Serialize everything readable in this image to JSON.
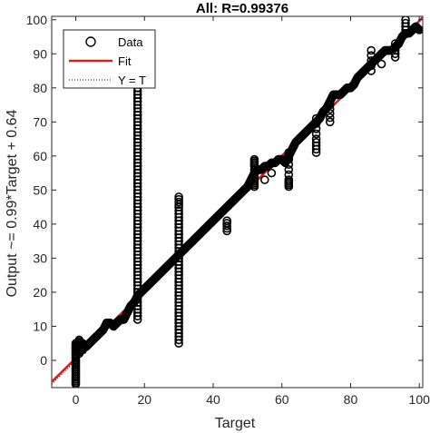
{
  "chart_data": {
    "type": "scatter",
    "title": "All: R=0.99376",
    "xlabel": "Target",
    "ylabel": "Output ~= 0.99*Target + 0.64",
    "xlim": [
      -7,
      101
    ],
    "ylim": [
      -8,
      101
    ],
    "x_ticks": [
      0,
      20,
      40,
      60,
      80,
      100
    ],
    "y_ticks": [
      0,
      10,
      20,
      30,
      40,
      50,
      60,
      70,
      80,
      90,
      100
    ],
    "grid": false,
    "legend_position": "top-left",
    "legend": [
      {
        "label": "Data",
        "style": "open circle marker",
        "color": "#000000"
      },
      {
        "label": "Fit",
        "style": "solid line",
        "color": "#d62020"
      },
      {
        "label": "Y = T",
        "style": "dotted line",
        "color": "#000000"
      }
    ],
    "fit": {
      "slope": 0.99,
      "intercept": 0.64
    },
    "series": [
      {
        "name": "Data",
        "points": [
          [
            0,
            -7
          ],
          [
            0,
            -5
          ],
          [
            0,
            -3
          ],
          [
            0,
            -1
          ],
          [
            0,
            1
          ],
          [
            0,
            3
          ],
          [
            0,
            5
          ],
          [
            1,
            2
          ],
          [
            1,
            4
          ],
          [
            1,
            6
          ],
          [
            2,
            3
          ],
          [
            2,
            5
          ],
          [
            3,
            4
          ],
          [
            4,
            5
          ],
          [
            5,
            6
          ],
          [
            6,
            7
          ],
          [
            7,
            8
          ],
          [
            8,
            9
          ],
          [
            9,
            11
          ],
          [
            10,
            11
          ],
          [
            11,
            10
          ],
          [
            12,
            11
          ],
          [
            13,
            12
          ],
          [
            14,
            12
          ],
          [
            15,
            14
          ],
          [
            16,
            16
          ],
          [
            17,
            17
          ],
          [
            18,
            19
          ],
          [
            19,
            20
          ],
          [
            20,
            21
          ],
          [
            21,
            22
          ],
          [
            22,
            23
          ],
          [
            23,
            24
          ],
          [
            24,
            25
          ],
          [
            25,
            26
          ],
          [
            26,
            27
          ],
          [
            27,
            28
          ],
          [
            28,
            29
          ],
          [
            29,
            30
          ],
          [
            30,
            31
          ],
          [
            31,
            32
          ],
          [
            32,
            33
          ],
          [
            33,
            34
          ],
          [
            34,
            35
          ],
          [
            35,
            36
          ],
          [
            36,
            37
          ],
          [
            37,
            38
          ],
          [
            38,
            39
          ],
          [
            39,
            40
          ],
          [
            40,
            41
          ],
          [
            41,
            42
          ],
          [
            42,
            43
          ],
          [
            43,
            44
          ],
          [
            44,
            45
          ],
          [
            45,
            46
          ],
          [
            46,
            47
          ],
          [
            47,
            48
          ],
          [
            48,
            49
          ],
          [
            49,
            50
          ],
          [
            50,
            51
          ],
          [
            51,
            53
          ],
          [
            52,
            55
          ],
          [
            53,
            56
          ],
          [
            54,
            56
          ],
          [
            55,
            57
          ],
          [
            56,
            57
          ],
          [
            57,
            58
          ],
          [
            58,
            58
          ],
          [
            59,
            59
          ],
          [
            60,
            59
          ],
          [
            61,
            58
          ],
          [
            62,
            60
          ],
          [
            63,
            62
          ],
          [
            64,
            64
          ],
          [
            65,
            65
          ],
          [
            66,
            66
          ],
          [
            67,
            67
          ],
          [
            68,
            68
          ],
          [
            69,
            69
          ],
          [
            70,
            70
          ],
          [
            71,
            71
          ],
          [
            72,
            73
          ],
          [
            73,
            74
          ],
          [
            74,
            76
          ],
          [
            75,
            78
          ],
          [
            76,
            78
          ],
          [
            77,
            78
          ],
          [
            78,
            79
          ],
          [
            79,
            80
          ],
          [
            80,
            80
          ],
          [
            81,
            81
          ],
          [
            82,
            83
          ],
          [
            83,
            84
          ],
          [
            84,
            85
          ],
          [
            85,
            86
          ],
          [
            86,
            87
          ],
          [
            87,
            88
          ],
          [
            88,
            89
          ],
          [
            89,
            90
          ],
          [
            90,
            91
          ],
          [
            91,
            91
          ],
          [
            92,
            91
          ],
          [
            93,
            92
          ],
          [
            94,
            93
          ],
          [
            95,
            95
          ],
          [
            96,
            96
          ],
          [
            97,
            96
          ],
          [
            98,
            97
          ],
          [
            99,
            98
          ],
          [
            100,
            97
          ],
          [
            18,
            12
          ],
          [
            18,
            16
          ],
          [
            18,
            20
          ],
          [
            18,
            24
          ],
          [
            18,
            28
          ],
          [
            18,
            32
          ],
          [
            18,
            36
          ],
          [
            18,
            40
          ],
          [
            18,
            44
          ],
          [
            18,
            48
          ],
          [
            18,
            52
          ],
          [
            18,
            56
          ],
          [
            18,
            60
          ],
          [
            18,
            64
          ],
          [
            18,
            68
          ],
          [
            18,
            72
          ],
          [
            18,
            76
          ],
          [
            18,
            80
          ],
          [
            18,
            84
          ],
          [
            30,
            5
          ],
          [
            30,
            9
          ],
          [
            30,
            13
          ],
          [
            30,
            17
          ],
          [
            30,
            21
          ],
          [
            30,
            25
          ],
          [
            30,
            29
          ],
          [
            30,
            33
          ],
          [
            30,
            37
          ],
          [
            30,
            41
          ],
          [
            30,
            45
          ],
          [
            30,
            48
          ],
          [
            52,
            51
          ],
          [
            52,
            53
          ],
          [
            52,
            57
          ],
          [
            52,
            59
          ],
          [
            62,
            51
          ],
          [
            62,
            53
          ],
          [
            62,
            59
          ],
          [
            62,
            61
          ],
          [
            70,
            61
          ],
          [
            70,
            65
          ],
          [
            70,
            71
          ],
          [
            74,
            70
          ],
          [
            74,
            75
          ],
          [
            86,
            85
          ],
          [
            86,
            91
          ],
          [
            96,
            96
          ],
          [
            96,
            100
          ],
          [
            44,
            38
          ],
          [
            44,
            41
          ],
          [
            55,
            53
          ],
          [
            57,
            55
          ],
          [
            89,
            87
          ],
          [
            93,
            89
          ],
          [
            93,
            93
          ]
        ]
      }
    ]
  }
}
